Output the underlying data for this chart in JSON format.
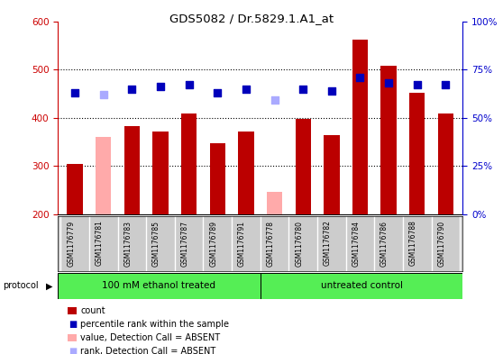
{
  "title": "GDS5082 / Dr.5829.1.A1_at",
  "samples": [
    "GSM1176779",
    "GSM1176781",
    "GSM1176783",
    "GSM1176785",
    "GSM1176787",
    "GSM1176789",
    "GSM1176791",
    "GSM1176778",
    "GSM1176780",
    "GSM1176782",
    "GSM1176784",
    "GSM1176786",
    "GSM1176788",
    "GSM1176790"
  ],
  "bar_values": [
    305,
    360,
    382,
    371,
    408,
    347,
    371,
    247,
    397,
    363,
    562,
    507,
    452,
    409
  ],
  "bar_absent": [
    false,
    true,
    false,
    false,
    false,
    false,
    false,
    true,
    false,
    false,
    false,
    false,
    false,
    false
  ],
  "rank_values": [
    63,
    62,
    65,
    66,
    67,
    63,
    65,
    59,
    65,
    64,
    71,
    68,
    67,
    67
  ],
  "rank_absent": [
    false,
    true,
    false,
    false,
    false,
    false,
    false,
    true,
    false,
    false,
    false,
    false,
    false,
    false
  ],
  "ylim_left": [
    200,
    600
  ],
  "ylim_right": [
    0,
    100
  ],
  "y_ticks_left": [
    200,
    300,
    400,
    500,
    600
  ],
  "y_ticks_right": [
    0,
    25,
    50,
    75,
    100
  ],
  "group1_label": "100 mM ethanol treated",
  "group2_label": "untreated control",
  "group1_count": 7,
  "group2_count": 7,
  "bar_color_normal": "#bb0000",
  "bar_color_absent": "#ffaaaa",
  "rank_color_normal": "#0000bb",
  "rank_color_absent": "#aaaaff",
  "bar_width": 0.55,
  "rank_marker_size": 28,
  "group_color": "#55ee55",
  "legend_items": [
    {
      "label": "count",
      "color": "#bb0000",
      "type": "bar"
    },
    {
      "label": "percentile rank within the sample",
      "color": "#0000bb",
      "type": "square"
    },
    {
      "label": "value, Detection Call = ABSENT",
      "color": "#ffaaaa",
      "type": "bar"
    },
    {
      "label": "rank, Detection Call = ABSENT",
      "color": "#aaaaff",
      "type": "square"
    }
  ],
  "left_axis_color": "#cc0000",
  "right_axis_color": "#0000cc",
  "xlabel_bg": "#cccccc",
  "plot_bg": "#ffffff"
}
